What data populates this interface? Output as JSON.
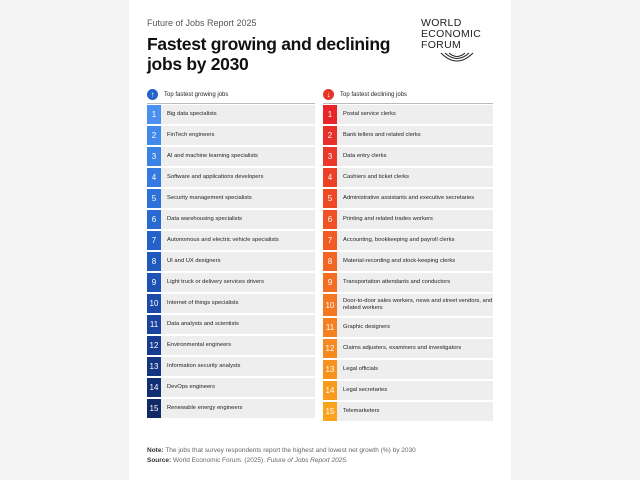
{
  "header": {
    "report_name": "Future of Jobs Report 2025",
    "title": "Fastest growing and declining jobs by 2030"
  },
  "logo": {
    "line1": "WORLD",
    "line2": "ECONOMIC",
    "line3": "FORUM"
  },
  "growing": {
    "heading": "Top fastest growing jobs",
    "accent": "#2563c9",
    "items": [
      {
        "rank": "1",
        "label": "Big data specialists",
        "color": "#4a90f0"
      },
      {
        "rank": "2",
        "label": "FinTech engineers",
        "color": "#4289ec"
      },
      {
        "rank": "3",
        "label": "AI and machine learning specialists",
        "color": "#3b82e6"
      },
      {
        "rank": "4",
        "label": "Software and applications developers",
        "color": "#347ae0"
      },
      {
        "rank": "5",
        "label": "Security management specialists",
        "color": "#2e72d9"
      },
      {
        "rank": "6",
        "label": "Data warehousing specialists",
        "color": "#286ad2"
      },
      {
        "rank": "7",
        "label": "Autonomous and electric vehicle specialists",
        "color": "#2462c9"
      },
      {
        "rank": "8",
        "label": "UI and UX designers",
        "color": "#205abf"
      },
      {
        "rank": "9",
        "label": "Light truck or delivery services drivers",
        "color": "#1d52b4"
      },
      {
        "rank": "10",
        "label": "Internet of things specialists",
        "color": "#1b4aa8"
      },
      {
        "rank": "11",
        "label": "Data analysts and scientists",
        "color": "#19439c"
      },
      {
        "rank": "12",
        "label": "Environmental engineers",
        "color": "#173c8f"
      },
      {
        "rank": "13",
        "label": "Information security analysts",
        "color": "#153582"
      },
      {
        "rank": "14",
        "label": "DevOps engineers",
        "color": "#132f74"
      },
      {
        "rank": "15",
        "label": "Renewable energy engineers",
        "color": "#112966"
      }
    ]
  },
  "declining": {
    "heading": "Top fastest declining jobs",
    "accent": "#e8332a",
    "items": [
      {
        "rank": "1",
        "label": "Postal service clerks",
        "color": "#e8262a",
        "tall": false
      },
      {
        "rank": "2",
        "label": "Bank tellers and related clerks",
        "color": "#e92f29",
        "tall": false
      },
      {
        "rank": "3",
        "label": "Data entry clerks",
        "color": "#eb3828",
        "tall": false
      },
      {
        "rank": "4",
        "label": "Cashiers and ticket clerks",
        "color": "#ec4127",
        "tall": false
      },
      {
        "rank": "5",
        "label": "Administrative assistants and executive secretaries",
        "color": "#ee4a26",
        "tall": false
      },
      {
        "rank": "6",
        "label": "Printing and related trades workers",
        "color": "#ef5325",
        "tall": false
      },
      {
        "rank": "7",
        "label": "Accounting, bookkeeping and payroll clerks",
        "color": "#f15c24",
        "tall": false
      },
      {
        "rank": "8",
        "label": "Material-recording and stock-keeping clerks",
        "color": "#f26523",
        "tall": false
      },
      {
        "rank": "9",
        "label": "Transportation attendants and conductors",
        "color": "#f36e22",
        "tall": false
      },
      {
        "rank": "10",
        "label": "Door-to-door sales workers, news and street vendors, and related workers",
        "color": "#f47721",
        "tall": true
      },
      {
        "rank": "11",
        "label": "Graphic designers",
        "color": "#f58020",
        "tall": false
      },
      {
        "rank": "12",
        "label": "Claims adjusters, examiners and investigators",
        "color": "#f6891f",
        "tall": false
      },
      {
        "rank": "13",
        "label": "Legal officials",
        "color": "#f7921e",
        "tall": false
      },
      {
        "rank": "14",
        "label": "Legal secretaries",
        "color": "#f89b1d",
        "tall": false
      },
      {
        "rank": "15",
        "label": "Telemarketers",
        "color": "#f9a41c",
        "tall": false
      }
    ]
  },
  "footer": {
    "note_label": "Note:",
    "note_text": "The jobs that survey respondents report the highest and lowest net growth (%) by 2030",
    "source_label": "Source:",
    "source_text": "World Economic Forum. (2025).",
    "source_title": "Future of Jobs Report 2025."
  }
}
